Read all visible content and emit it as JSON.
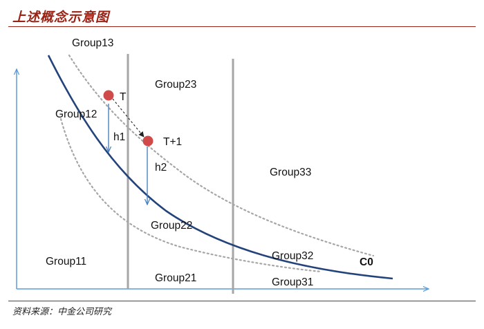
{
  "header": {
    "title": "上述概念示意图"
  },
  "footer": {
    "source": "资料来源：中金公司研究"
  },
  "diagram": {
    "groups": {
      "g13": "Group13",
      "g23": "Group23",
      "g12": "Group12",
      "g33": "Group33",
      "g22": "Group22",
      "g11": "Group11",
      "g32": "Group32",
      "g21": "Group21",
      "g31": "Group31"
    },
    "points": {
      "t": "T",
      "t1": "T+1"
    },
    "heights": {
      "h1": "h1",
      "h2": "h2"
    },
    "curve_label": "C0",
    "colors": {
      "curve": "#24437a",
      "axis": "#5b9bd5",
      "dotted": "#a6a6a6",
      "divider": "#a6a6a6",
      "point": "#cf4a48",
      "arrow": "#4a7fc1",
      "title": "#9b2316"
    }
  }
}
